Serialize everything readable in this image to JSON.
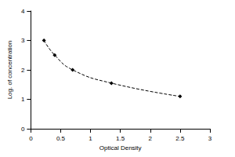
{
  "chart_data": {
    "type": "line",
    "x_label": "Optical Density",
    "y_label": "Log. of concentration",
    "x": [
      0.22,
      0.4,
      0.7,
      1.35,
      2.5
    ],
    "values": [
      3.0,
      2.5,
      2.0,
      1.55,
      1.1
    ],
    "color": "#000000",
    "marker": "diamond",
    "line_style": "dashed",
    "xlim": [
      0,
      3
    ],
    "xticks": [
      0,
      0.5,
      1,
      1.5,
      2,
      2.5,
      3
    ],
    "ylim": [
      0,
      4
    ],
    "yticks": [
      0,
      1,
      2,
      3,
      4
    ],
    "grid": false
  }
}
